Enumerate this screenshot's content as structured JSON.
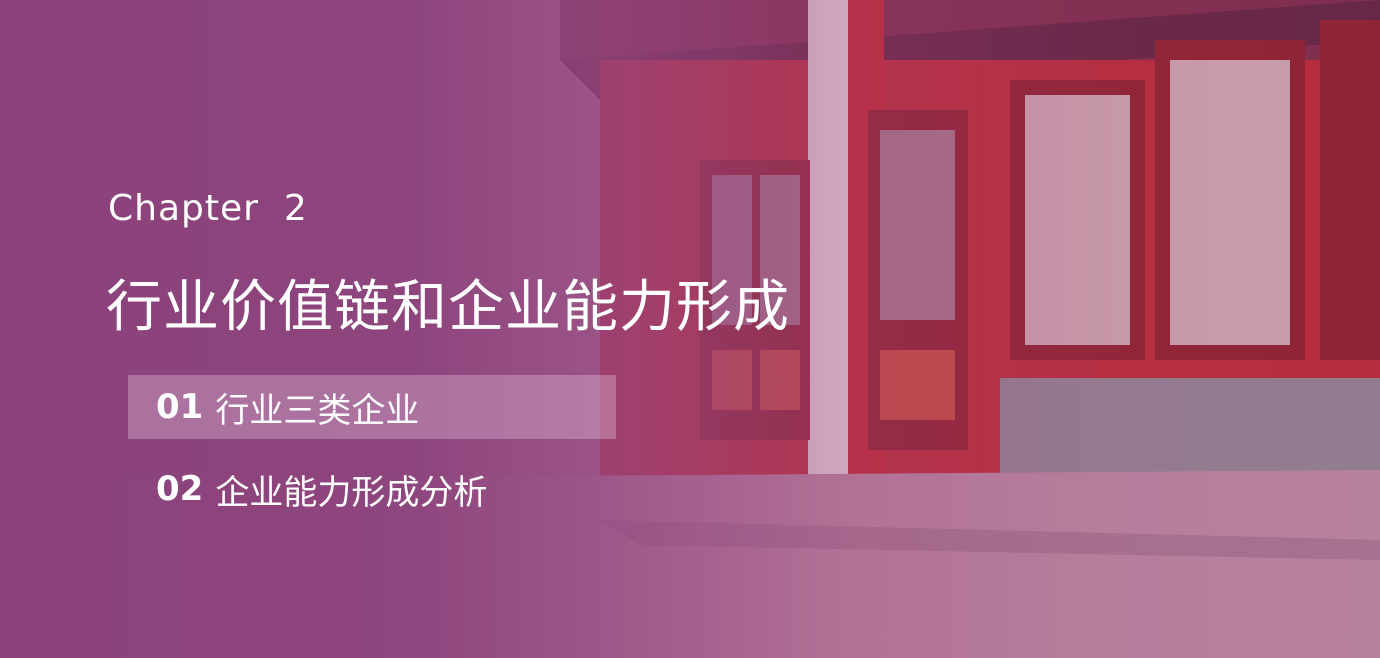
{
  "slide": {
    "chapter_label": "Chapter  2",
    "title": "行业价值链和企业能力形成",
    "toc": [
      {
        "number": "01",
        "label": "行业三类企业",
        "active": true
      },
      {
        "number": "02",
        "label": "企业能力形成分析",
        "active": false
      }
    ]
  },
  "colors": {
    "overlay": "#8a407a",
    "text": "#ffffff",
    "highlight": "#e6c8e1"
  }
}
